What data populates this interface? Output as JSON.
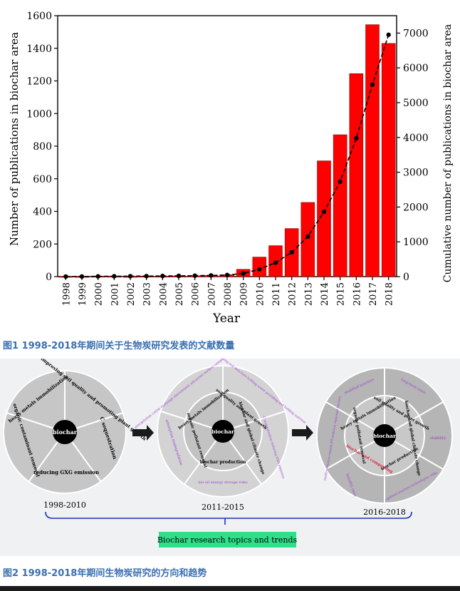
{
  "fig1": {
    "caption": "图1 1998-2018年期间关于生物炭研究发表的文献数量",
    "chart_data": {
      "type": "bar",
      "categories": [
        "1998",
        "1999",
        "2000",
        "2001",
        "2002",
        "2003",
        "2004",
        "2005",
        "2006",
        "2007",
        "2008",
        "2009",
        "2010",
        "2011",
        "2012",
        "2013",
        "2014",
        "2015",
        "2016",
        "2017",
        "2018"
      ],
      "series": [
        {
          "axis": "left",
          "type": "bar",
          "color": "#ff0000",
          "values": [
            2,
            2,
            3,
            3,
            2,
            3,
            3,
            4,
            5,
            7,
            12,
            45,
            120,
            190,
            295,
            455,
            710,
            870,
            1245,
            1545,
            1430
          ]
        },
        {
          "axis": "right",
          "type": "line",
          "color": "#000000",
          "values": [
            2,
            4,
            7,
            10,
            12,
            15,
            18,
            22,
            27,
            34,
            46,
            91,
            211,
            401,
            696,
            1151,
            1861,
            2731,
            3976,
            5521,
            6951
          ]
        }
      ],
      "xlabel": "Year",
      "ylabel": "Number of publications in biochar area",
      "ylabel_right": "Cumulative number of publications in biochar area",
      "ylim": [
        0,
        1600
      ],
      "ylim_right": [
        0,
        7500
      ],
      "yticks": [
        "0",
        "200",
        "400",
        "600",
        "800",
        "1000",
        "1200",
        "1400",
        "1600"
      ],
      "yticks_right": [
        "0",
        "1000",
        "2000",
        "3000",
        "4000",
        "5000",
        "6000",
        "7000"
      ],
      "grid": false
    }
  },
  "fig2": {
    "caption": "图2 1998-2018年期间生物炭研究的方向和趋势",
    "center_label": "biochar",
    "wheels": [
      {
        "year_label": "1998-2010",
        "segments": [
          "heavy metals immobilization",
          "improving soil quality and promoting plant growth",
          "C sequestration",
          "reducing GXG emission",
          "organic contaminant removal"
        ]
      },
      {
        "year_label": "2011-2015",
        "inner": [
          "heavy metals immobilization",
          "soil quality and plant growth",
          "biochar and global climate change",
          "biochar production",
          "organic pollutant removal"
        ],
        "outer": [
          "precipitation cation exchange electrostatic attraction surface complexation",
          "improving soil structure holding water providing and holding nutrient",
          "C sequestration reducing GXG emission",
          "bio-oil energy storage risks",
          "adsorption biodegradation"
        ]
      },
      {
        "year_label": "2016-2018",
        "inner": [
          "heavy metals immobilization",
          "soil quality and plant growth",
          "biochar and global climate change",
          "biochar production",
          "biochar and composting",
          "organic pollutant removal"
        ],
        "outer": [
          "modified biochars",
          "long-term trials",
          "stability",
          "updated reactors technologies risks",
          "benefits risks",
          "Fe(III)-reduction-coupled ZVI-oxidation supported biochars"
        ]
      }
    ],
    "trend_label": "Biochar research topics and trends"
  },
  "colors": {
    "bar": "#ff0000",
    "line": "#000000",
    "caption": "#3a6fb0",
    "wheel": "#c6c6c6",
    "outer_ring": "#b5b5b5",
    "purple": "#9a40d0",
    "red": "#e0203a",
    "label_bg": "#2ee08a"
  }
}
